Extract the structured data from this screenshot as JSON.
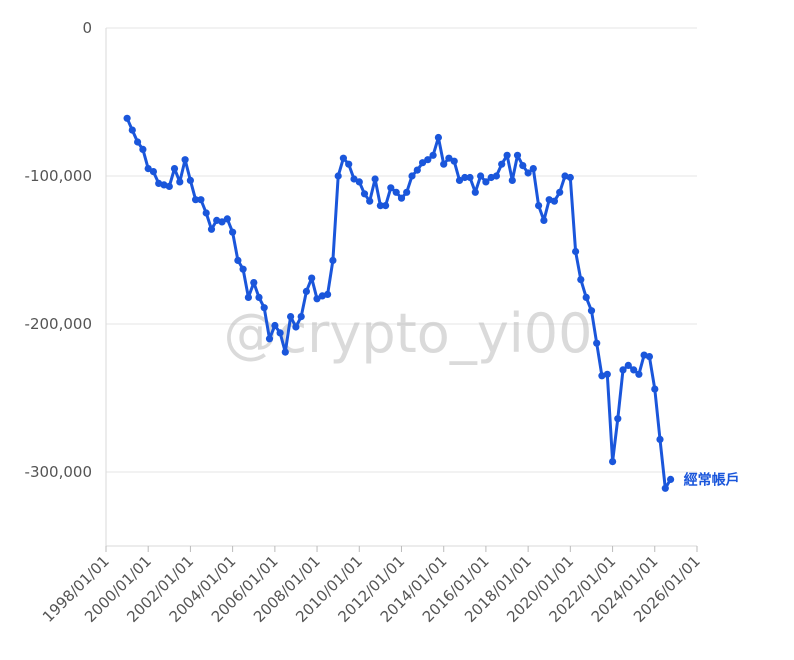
{
  "chart_data": {
    "type": "line",
    "title": "",
    "xlabel": "",
    "ylabel": "",
    "grid": true,
    "legend": "end-of-line label",
    "watermark": "@crypto_yi00",
    "line_color": "#1a56db",
    "ylim": [
      -350000,
      0
    ],
    "xlim": [
      "1998/01/01",
      "2026/01/01"
    ],
    "yticks": [
      {
        "value": 0,
        "label": "0"
      },
      {
        "value": -100000,
        "label": "-100,000"
      },
      {
        "value": -200000,
        "label": "-200,000"
      },
      {
        "value": -300000,
        "label": "-300,000"
      }
    ],
    "xticks": [
      "1998/01/01",
      "2000/01/01",
      "2002/01/01",
      "2004/01/01",
      "2006/01/01",
      "2008/01/01",
      "2010/01/01",
      "2012/01/01",
      "2014/01/01",
      "2016/01/01",
      "2018/01/01",
      "2020/01/01",
      "2022/01/01",
      "2024/01/01",
      "2026/01/01"
    ],
    "series": [
      {
        "name": "經常帳戶",
        "x": [
          "1999/01/01",
          "1999/04/01",
          "1999/07/01",
          "1999/10/01",
          "2000/01/01",
          "2000/04/01",
          "2000/07/01",
          "2000/10/01",
          "2001/01/01",
          "2001/04/01",
          "2001/07/01",
          "2001/10/01",
          "2002/01/01",
          "2002/04/01",
          "2002/07/01",
          "2002/10/01",
          "2003/01/01",
          "2003/04/01",
          "2003/07/01",
          "2003/10/01",
          "2004/01/01",
          "2004/04/01",
          "2004/07/01",
          "2004/10/01",
          "2005/01/01",
          "2005/04/01",
          "2005/07/01",
          "2005/10/01",
          "2006/01/01",
          "2006/04/01",
          "2006/07/01",
          "2006/10/01",
          "2007/01/01",
          "2007/04/01",
          "2007/07/01",
          "2007/10/01",
          "2008/01/01",
          "2008/04/01",
          "2008/07/01",
          "2008/10/01",
          "2009/01/01",
          "2009/04/01",
          "2009/07/01",
          "2009/10/01",
          "2010/01/01",
          "2010/04/01",
          "2010/07/01",
          "2010/10/01",
          "2011/01/01",
          "2011/04/01",
          "2011/07/01",
          "2011/10/01",
          "2012/01/01",
          "2012/04/01",
          "2012/07/01",
          "2012/10/01",
          "2013/01/01",
          "2013/04/01",
          "2013/07/01",
          "2013/10/01",
          "2014/01/01",
          "2014/04/01",
          "2014/07/01",
          "2014/10/01",
          "2015/01/01",
          "2015/04/01",
          "2015/07/01",
          "2015/10/01",
          "2016/01/01",
          "2016/04/01",
          "2016/07/01",
          "2016/10/01",
          "2017/01/01",
          "2017/04/01",
          "2017/07/01",
          "2017/10/01",
          "2018/01/01",
          "2018/04/01",
          "2018/07/01",
          "2018/10/01",
          "2019/01/01",
          "2019/04/01",
          "2019/07/01",
          "2019/10/01",
          "2020/01/01",
          "2020/04/01",
          "2020/07/01",
          "2020/10/01",
          "2021/01/01",
          "2021/04/01",
          "2021/07/01",
          "2021/10/01",
          "2022/01/01",
          "2022/04/01",
          "2022/07/01",
          "2022/10/01",
          "2023/01/01",
          "2023/04/01",
          "2023/07/01",
          "2023/10/01",
          "2024/01/01",
          "2024/04/01",
          "2024/07/01",
          "2024/10/01"
        ],
        "values": [
          -61000,
          -69000,
          -77000,
          -82000,
          -95000,
          -97000,
          -105000,
          -106000,
          -107000,
          -95000,
          -104000,
          -89000,
          -103000,
          -116000,
          -116000,
          -125000,
          -136000,
          -130000,
          -131000,
          -129000,
          -138000,
          -157000,
          -163000,
          -182000,
          -172000,
          -182000,
          -189000,
          -210000,
          -201000,
          -206000,
          -219000,
          -195000,
          -202000,
          -195000,
          -178000,
          -169000,
          -183000,
          -181000,
          -180000,
          -157000,
          -100000,
          -88000,
          -92000,
          -102000,
          -104000,
          -112000,
          -117000,
          -102000,
          -120000,
          -120000,
          -108000,
          -111000,
          -115000,
          -111000,
          -100000,
          -96000,
          -91000,
          -89000,
          -86000,
          -74000,
          -92000,
          -88000,
          -90000,
          -103000,
          -101000,
          -101000,
          -111000,
          -100000,
          -104000,
          -101000,
          -100000,
          -92000,
          -86000,
          -103000,
          -86000,
          -93000,
          -98000,
          -95000,
          -120000,
          -130000,
          -116000,
          -117000,
          -111000,
          -100000,
          -101000,
          -151000,
          -170000,
          -182000,
          -191000,
          -213000,
          -235000,
          -234000,
          -293000,
          -264000,
          -231000,
          -228000,
          -231000,
          -234000,
          -221000,
          -222000,
          -244000,
          -278000,
          -311000,
          -305000
        ]
      }
    ]
  }
}
